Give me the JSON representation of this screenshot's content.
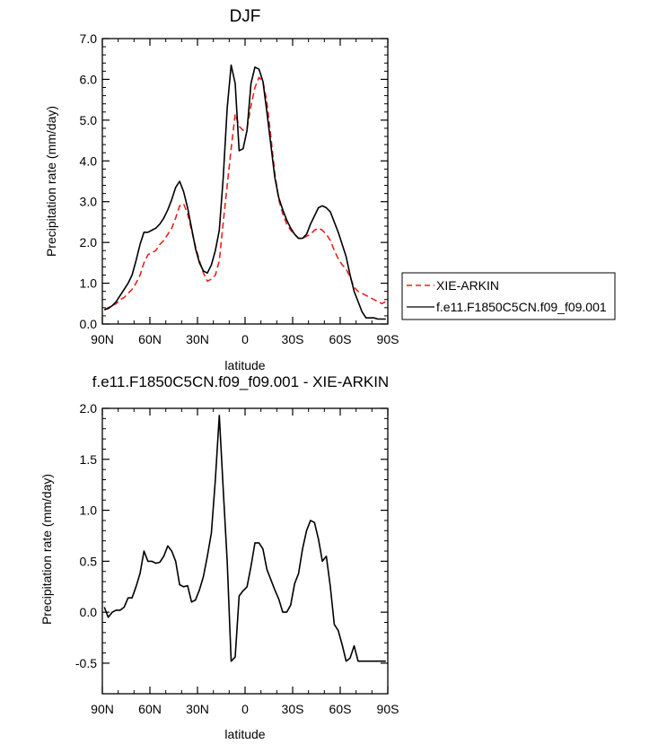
{
  "chart_data": [
    {
      "type": "line",
      "title": "DJF",
      "xlabel": "latitude",
      "ylabel": "Precipitation rate (mm/day)",
      "xticks": [
        "90N",
        "60N",
        "30N",
        "0",
        "30S",
        "60S",
        "90S"
      ],
      "xtick_values": [
        90,
        60,
        30,
        0,
        -30,
        -60,
        -90
      ],
      "xlim": [
        90,
        -90
      ],
      "yticks": [
        "0.0",
        "1.0",
        "2.0",
        "3.0",
        "4.0",
        "5.0",
        "6.0",
        "7.0"
      ],
      "ylim": [
        0,
        7
      ],
      "legend_position": "right",
      "series": [
        {
          "name": "XIE-ARKIN",
          "color": "#e8231e",
          "dash": "dashed",
          "x": [
            88.75,
            86.25,
            83.75,
            81.25,
            78.75,
            76.25,
            73.75,
            71.25,
            68.75,
            66.25,
            63.75,
            61.25,
            58.75,
            56.25,
            53.75,
            51.25,
            48.75,
            46.25,
            43.75,
            41.25,
            38.75,
            36.25,
            33.75,
            31.25,
            28.75,
            26.25,
            23.75,
            21.25,
            18.75,
            16.25,
            13.75,
            11.25,
            8.75,
            6.25,
            3.75,
            1.25,
            -1.25,
            -3.75,
            -6.25,
            -8.75,
            -11.25,
            -13.75,
            -16.25,
            -18.75,
            -21.25,
            -23.75,
            -26.25,
            -28.75,
            -31.25,
            -33.75,
            -36.25,
            -38.75,
            -41.25,
            -43.75,
            -46.25,
            -48.75,
            -51.25,
            -53.75,
            -56.25,
            -58.75,
            -61.25,
            -63.75,
            -66.25,
            -68.75,
            -71.25,
            -73.75,
            -76.25,
            -78.75,
            -81.25,
            -83.75,
            -86.25,
            -88.75
          ],
          "values": [
            0.35,
            0.4,
            0.45,
            0.5,
            0.6,
            0.65,
            0.75,
            0.85,
            1.0,
            1.2,
            1.5,
            1.7,
            1.75,
            1.8,
            1.95,
            2.05,
            2.2,
            2.35,
            2.6,
            2.9,
            2.95,
            2.7,
            2.3,
            1.9,
            1.55,
            1.25,
            1.05,
            1.1,
            1.2,
            1.55,
            2.5,
            3.4,
            4.3,
            5.15,
            4.85,
            4.75,
            4.8,
            5.35,
            5.8,
            6.05,
            5.95,
            5.45,
            4.6,
            3.7,
            3.05,
            2.7,
            2.45,
            2.3,
            2.2,
            2.1,
            2.1,
            2.15,
            2.2,
            2.3,
            2.35,
            2.3,
            2.2,
            2.05,
            1.8,
            1.6,
            1.45,
            1.35,
            1.15,
            0.9,
            0.8,
            0.75,
            0.7,
            0.65,
            0.6,
            0.55,
            0.5,
            0.55
          ]
        },
        {
          "name": "f.e11.F1850C5CN.f09_f09.001",
          "color": "#000000",
          "dash": "solid",
          "x": [
            88.75,
            86.25,
            83.75,
            81.25,
            78.75,
            76.25,
            73.75,
            71.25,
            68.75,
            66.25,
            63.75,
            61.25,
            58.75,
            56.25,
            53.75,
            51.25,
            48.75,
            46.25,
            43.75,
            41.25,
            38.75,
            36.25,
            33.75,
            31.25,
            28.75,
            26.25,
            23.75,
            21.25,
            18.75,
            16.25,
            13.75,
            11.25,
            8.75,
            6.25,
            3.75,
            1.25,
            -1.25,
            -3.75,
            -6.25,
            -8.75,
            -11.25,
            -13.75,
            -16.25,
            -18.75,
            -21.25,
            -23.75,
            -26.25,
            -28.75,
            -31.25,
            -33.75,
            -36.25,
            -38.75,
            -41.25,
            -43.75,
            -46.25,
            -48.75,
            -51.25,
            -53.75,
            -56.25,
            -58.75,
            -61.25,
            -63.75,
            -66.25,
            -68.75,
            -71.25,
            -73.75,
            -76.25,
            -78.75,
            -81.25,
            -83.75,
            -86.25,
            -88.75
          ],
          "values": [
            0.35,
            0.38,
            0.45,
            0.55,
            0.7,
            0.85,
            1.0,
            1.2,
            1.55,
            1.95,
            2.25,
            2.25,
            2.3,
            2.35,
            2.45,
            2.6,
            2.8,
            3.05,
            3.35,
            3.5,
            3.25,
            2.85,
            2.35,
            1.85,
            1.5,
            1.3,
            1.25,
            1.45,
            1.8,
            2.3,
            3.6,
            5.3,
            6.35,
            5.9,
            4.25,
            4.3,
            4.75,
            5.9,
            6.3,
            6.25,
            5.95,
            5.2,
            4.4,
            3.6,
            3.1,
            2.8,
            2.55,
            2.35,
            2.2,
            2.1,
            2.1,
            2.2,
            2.45,
            2.65,
            2.85,
            2.9,
            2.85,
            2.75,
            2.5,
            2.25,
            1.95,
            1.65,
            1.2,
            0.8,
            0.55,
            0.3,
            0.15,
            0.15,
            0.15,
            0.12,
            0.12,
            0.12
          ]
        }
      ]
    },
    {
      "type": "line",
      "title": "f.e11.F1850C5CN.f09_f09.001 - XIE-ARKIN",
      "xlabel": "latitude",
      "ylabel": "Precipitation rate (mm/day)",
      "xticks": [
        "90N",
        "60N",
        "30N",
        "0",
        "30S",
        "60S",
        "90S"
      ],
      "xtick_values": [
        90,
        60,
        30,
        0,
        -30,
        -60,
        -90
      ],
      "xlim": [
        90,
        -90
      ],
      "yticks": [
        "-0.5",
        "0.0",
        "0.5",
        "1.0",
        "1.5",
        "2.0"
      ],
      "ytick_values": [
        -0.5,
        0,
        0.5,
        1,
        1.5,
        2
      ],
      "ylim": [
        -0.8,
        2.0
      ],
      "series": [
        {
          "color": "#000000",
          "dash": "solid",
          "x": [
            88.75,
            86.25,
            83.75,
            81.25,
            78.75,
            76.25,
            73.75,
            71.25,
            68.75,
            66.25,
            63.75,
            61.25,
            58.75,
            56.25,
            53.75,
            51.25,
            48.75,
            46.25,
            43.75,
            41.25,
            38.75,
            36.25,
            33.75,
            31.25,
            28.75,
            26.25,
            23.75,
            21.25,
            18.75,
            16.25,
            13.75,
            11.25,
            8.75,
            6.25,
            3.75,
            1.25,
            -1.25,
            -3.75,
            -6.25,
            -8.75,
            -11.25,
            -13.75,
            -16.25,
            -18.75,
            -21.25,
            -23.75,
            -26.25,
            -28.75,
            -31.25,
            -33.75,
            -36.25,
            -38.75,
            -41.25,
            -43.75,
            -46.25,
            -48.75,
            -51.25,
            -53.75,
            -56.25,
            -58.75,
            -61.25,
            -63.75,
            -66.25,
            -68.75,
            -71.25,
            -73.75,
            -76.25,
            -78.75,
            -81.25,
            -83.75,
            -86.25,
            -88.75
          ],
          "values": [
            0.05,
            -0.05,
            0.0,
            0.02,
            0.02,
            0.05,
            0.14,
            0.14,
            0.25,
            0.38,
            0.6,
            0.5,
            0.5,
            0.48,
            0.49,
            0.55,
            0.65,
            0.6,
            0.5,
            0.27,
            0.25,
            0.26,
            0.1,
            0.12,
            0.22,
            0.35,
            0.55,
            0.78,
            1.3,
            1.93,
            1.2,
            0.5,
            -0.48,
            -0.44,
            0.16,
            0.21,
            0.25,
            0.45,
            0.68,
            0.68,
            0.62,
            0.42,
            0.32,
            0.22,
            0.13,
            0.0,
            0.0,
            0.07,
            0.28,
            0.38,
            0.62,
            0.8,
            0.9,
            0.88,
            0.72,
            0.5,
            0.55,
            0.25,
            -0.12,
            -0.18,
            -0.32,
            -0.48,
            -0.45,
            -0.33,
            -0.48,
            -0.48,
            -0.48,
            -0.48,
            -0.48,
            -0.48,
            -0.48,
            -0.48
          ]
        }
      ]
    }
  ]
}
